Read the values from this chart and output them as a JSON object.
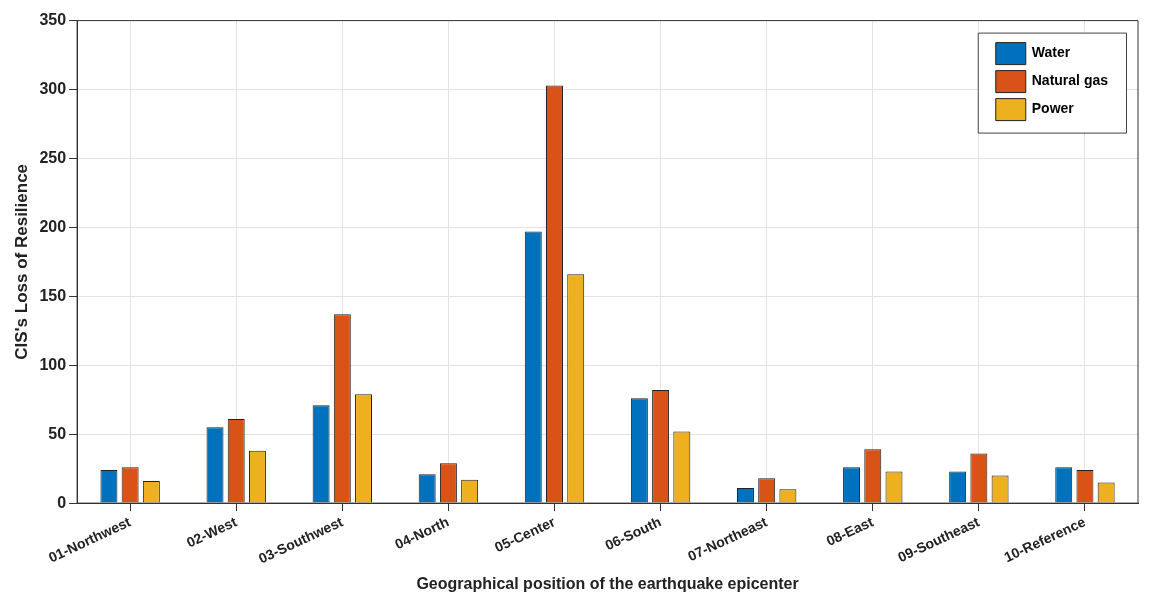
{
  "chart_data": {
    "type": "bar",
    "xlabel": "Geographical position of the earthquake epicenter",
    "ylabel": "CIS's Loss of Resilience",
    "categories": [
      "01-Northwest",
      "02-West",
      "03-Southwest",
      "04-North",
      "05-Center",
      "06-South",
      "07-Northeast",
      "08-East",
      "09-Southeast",
      "10-Reference"
    ],
    "series": [
      {
        "name": "Water",
        "color": "#0072bd",
        "values": [
          24,
          55,
          71,
          21,
          197,
          76,
          11,
          26,
          23,
          26
        ]
      },
      {
        "name": "Natural gas",
        "color": "#d95319",
        "values": [
          26,
          61,
          137,
          29,
          303,
          82,
          18,
          39,
          36,
          24
        ]
      },
      {
        "name": "Power",
        "color": "#edb120",
        "values": [
          16,
          38,
          79,
          17,
          166,
          52,
          10,
          23,
          20,
          15
        ]
      }
    ],
    "ylim": [
      0,
      350
    ],
    "yticks": [
      0,
      50,
      100,
      150,
      200,
      250,
      300,
      350
    ],
    "grid": true,
    "legend": "top right"
  }
}
